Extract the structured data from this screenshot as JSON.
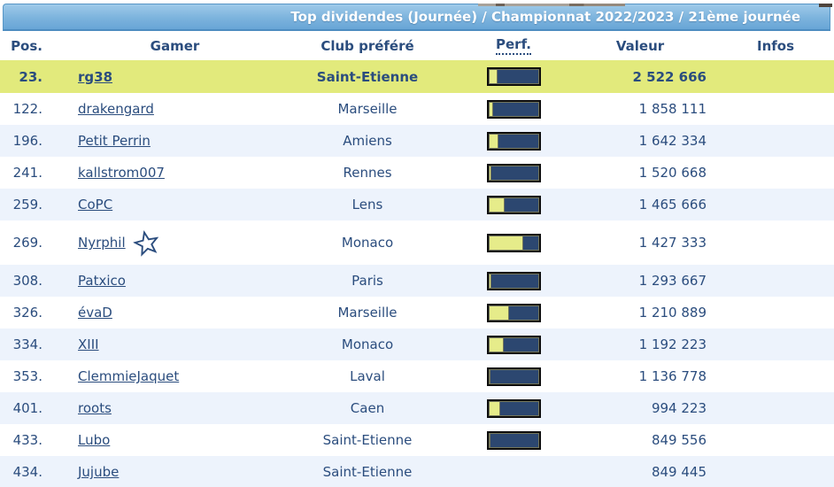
{
  "banner": {
    "title": "Top dividendes (Journée) / Championnat 2022/2023 / 21ème journée"
  },
  "table": {
    "columns": [
      "Pos.",
      "Gamer",
      "Club préféré",
      "Perf.",
      "Valeur",
      "Infos"
    ],
    "rows": [
      {
        "pos": "23.",
        "gamer": "rg38",
        "club": "Saint-Etienne",
        "perf_pct": 18,
        "valeur": "2 522 666",
        "highlight": true,
        "has_star": false
      },
      {
        "pos": "122.",
        "gamer": "drakengard",
        "club": "Marseille",
        "perf_pct": 9,
        "valeur": "1 858 111",
        "highlight": false,
        "has_star": false
      },
      {
        "pos": "196.",
        "gamer": "Petit Perrin",
        "club": "Amiens",
        "perf_pct": 20,
        "valeur": "1 642 334",
        "highlight": false,
        "has_star": false
      },
      {
        "pos": "241.",
        "gamer": "kallstrom007",
        "club": "Rennes",
        "perf_pct": 6,
        "valeur": "1 520 668",
        "highlight": false,
        "has_star": false
      },
      {
        "pos": "259.",
        "gamer": "CoPC",
        "club": "Lens",
        "perf_pct": 33,
        "valeur": "1 465 666",
        "highlight": false,
        "has_star": false
      },
      {
        "pos": "269.",
        "gamer": "Nyrphil",
        "club": "Monaco",
        "perf_pct": 70,
        "valeur": "1 427 333",
        "highlight": false,
        "has_star": true
      },
      {
        "pos": "308.",
        "gamer": "Patxico",
        "club": "Paris",
        "perf_pct": 7,
        "valeur": "1 293 667",
        "highlight": false,
        "has_star": false
      },
      {
        "pos": "326.",
        "gamer": "évaD",
        "club": "Marseille",
        "perf_pct": 42,
        "valeur": "1 210 889",
        "highlight": false,
        "has_star": false
      },
      {
        "pos": "334.",
        "gamer": "XIII",
        "club": "Monaco",
        "perf_pct": 30,
        "valeur": "1 192 223",
        "highlight": false,
        "has_star": false
      },
      {
        "pos": "353.",
        "gamer": "ClemmieJaquet",
        "club": "Laval",
        "perf_pct": 5,
        "valeur": "1 136 778",
        "highlight": false,
        "has_star": false
      },
      {
        "pos": "401.",
        "gamer": "roots",
        "club": "Caen",
        "perf_pct": 24,
        "valeur": "994 223",
        "highlight": false,
        "has_star": false
      },
      {
        "pos": "433.",
        "gamer": "Lubo",
        "club": "Saint-Etienne",
        "perf_pct": 5,
        "valeur": "849 556",
        "highlight": false,
        "has_star": false
      },
      {
        "pos": "434.",
        "gamer": "Jujube",
        "club": "Saint-Etienne",
        "perf_pct": null,
        "valeur": "849 445",
        "highlight": false,
        "has_star": false
      }
    ]
  },
  "colors": {
    "navy": "#2b4d7e",
    "row_highlight": "#e2ea7c",
    "row_alt": "#edf3fc",
    "bar_navy": "#2c4770",
    "bar_yellow": "#e6ec8a",
    "banner_top": "#9ecae9",
    "banner_bottom": "#68a5d6",
    "banner_border": "#5796c6"
  }
}
